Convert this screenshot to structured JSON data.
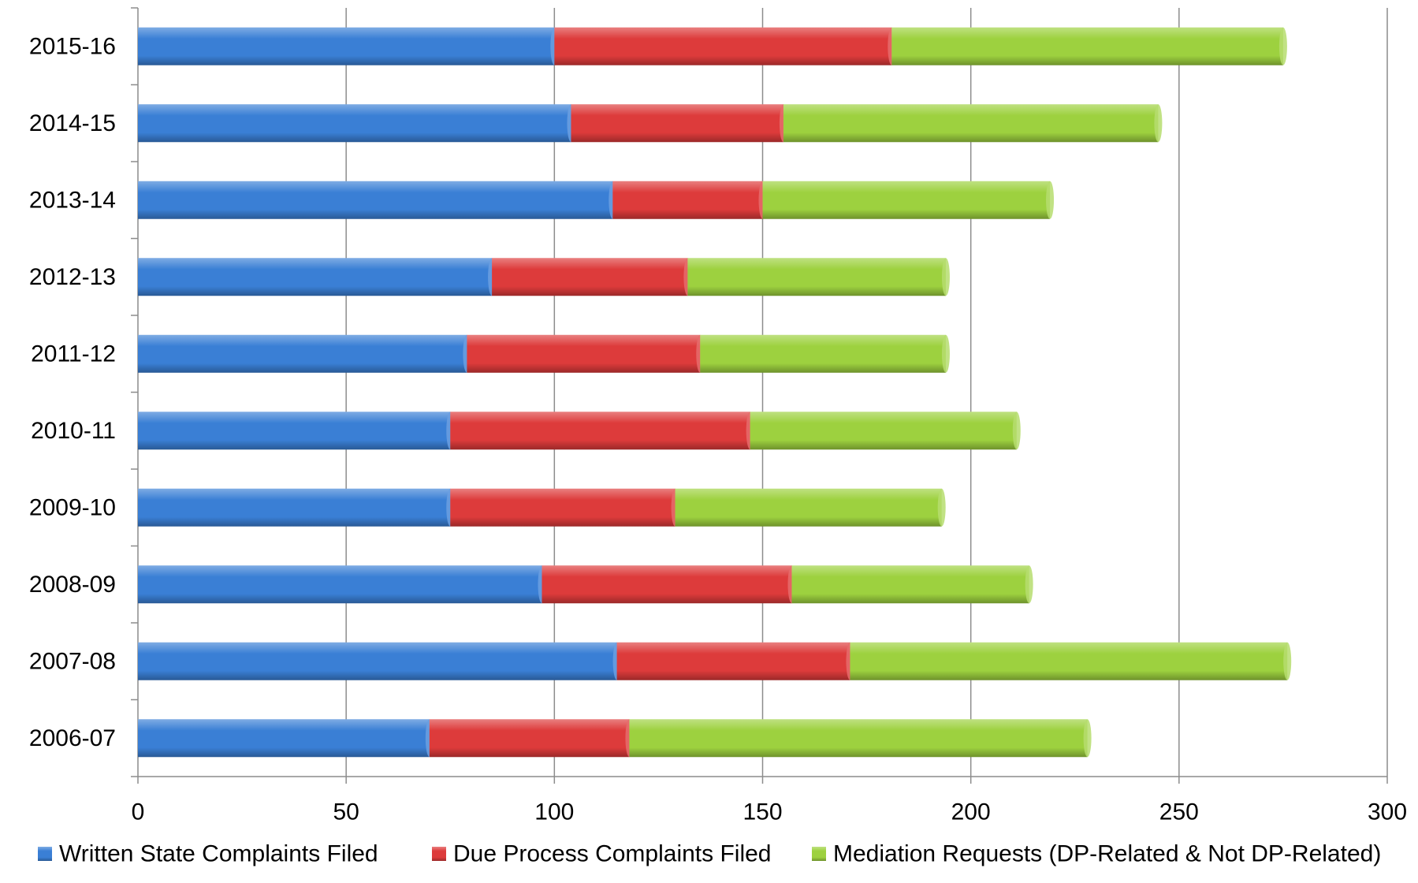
{
  "chart_data": {
    "type": "bar",
    "orientation": "horizontal",
    "stacked": true,
    "categories": [
      "2015-16",
      "2014-15",
      "2013-14",
      "2012-13",
      "2011-12",
      "2010-11",
      "2009-10",
      "2008-09",
      "2007-08",
      "2006-07"
    ],
    "series": [
      {
        "name": "Written State Complaints Filed",
        "color": "#3a7fd5",
        "values": [
          100,
          104,
          114,
          85,
          79,
          75,
          75,
          97,
          115,
          70
        ]
      },
      {
        "name": "Due Process Complaints Filed",
        "color": "#dd3b3b",
        "values": [
          81,
          51,
          36,
          47,
          56,
          72,
          54,
          60,
          56,
          48
        ]
      },
      {
        "name": "Mediation Requests (DP-Related & Not DP-Related)",
        "color": "#9dd13f",
        "values": [
          94,
          90,
          69,
          62,
          59,
          64,
          64,
          57,
          105,
          110
        ]
      }
    ],
    "xlim": [
      0,
      300
    ],
    "x_ticks": [
      0,
      50,
      100,
      150,
      200,
      250,
      300
    ],
    "grid": "vertical",
    "legend_position": "bottom",
    "title": "",
    "xlabel": "",
    "ylabel": ""
  }
}
